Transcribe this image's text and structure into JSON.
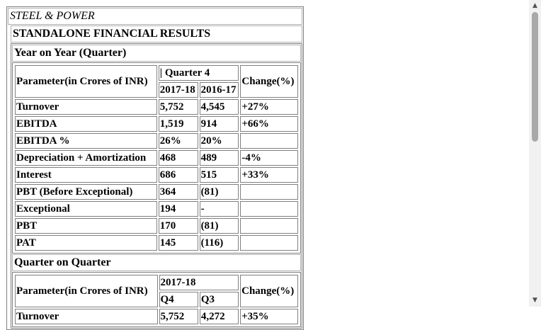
{
  "brand": "STEEL & POWER",
  "title": "STANDALONE FINANCIAL RESULTS",
  "yoy": {
    "title": "Year on Year (Quarter)",
    "param_header": "Parameter(in Crores of INR)",
    "quarter_header": "| Quarter 4",
    "col1": "2017-18",
    "col2": "2016-17",
    "change_header": "Change(%)",
    "rows": [
      {
        "param": "Turnover",
        "v1": "5,752",
        "v2": "4,545",
        "chg": "+27%"
      },
      {
        "param": "EBITDA",
        "v1": "1,519",
        "v2": "914",
        "chg": "+66%"
      },
      {
        "param": "EBITDA %",
        "v1": "26%",
        "v2": "20%",
        "chg": ""
      },
      {
        "param": "Depreciation + Amortization",
        "v1": "468",
        "v2": "489",
        "chg": "-4%"
      },
      {
        "param": "Interest",
        "v1": "686",
        "v2": "515",
        "chg": "+33%"
      },
      {
        "param": "PBT (Before Exceptional)",
        "v1": "364",
        "v2": "(81)",
        "chg": ""
      },
      {
        "param": "Exceptional",
        "v1": "194",
        "v2": "-",
        "chg": ""
      },
      {
        "param": "PBT",
        "v1": "170",
        "v2": "(81)",
        "chg": ""
      },
      {
        "param": "PAT",
        "v1": "145",
        "v2": "(116)",
        "chg": ""
      }
    ]
  },
  "qoq": {
    "title": "Quarter on Quarter",
    "param_header": "Parameter(in Crores of INR)",
    "year_header": "2017-18",
    "col1": "Q4",
    "col2": "Q3",
    "change_header": "Change(%)",
    "rows": [
      {
        "param": "Turnover",
        "v1": "5,752",
        "v2": "4,272",
        "chg": "+35%"
      }
    ]
  },
  "scrollbar": {
    "up_icon": "▲",
    "down_icon": "▼"
  }
}
